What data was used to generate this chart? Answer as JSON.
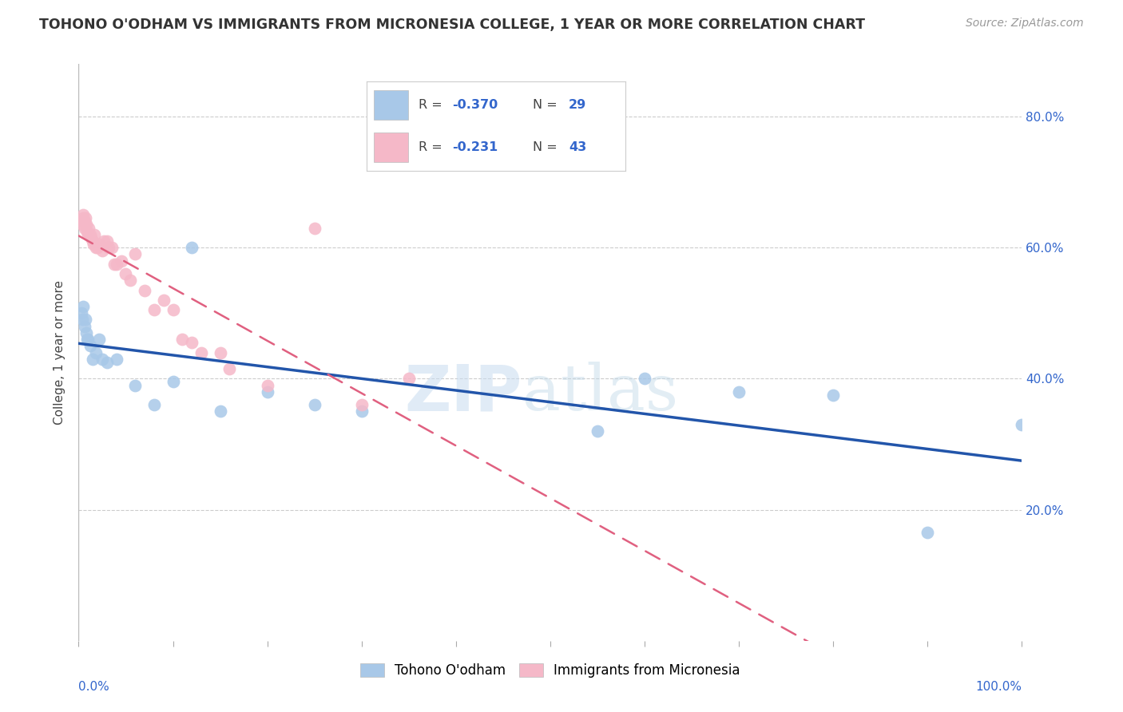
{
  "title": "TOHONO O'ODHAM VS IMMIGRANTS FROM MICRONESIA COLLEGE, 1 YEAR OR MORE CORRELATION CHART",
  "source": "Source: ZipAtlas.com",
  "ylabel": "College, 1 year or more",
  "legend_label_blue": "Tohono O'odham",
  "legend_label_pink": "Immigrants from Micronesia",
  "watermark_zip": "ZIP",
  "watermark_atlas": "atlas",
  "blue_color": "#a8c8e8",
  "pink_color": "#f5b8c8",
  "blue_line_color": "#2255aa",
  "pink_line_color": "#e06080",
  "background_color": "#ffffff",
  "grid_color": "#cccccc",
  "blue_x": [
    0.003,
    0.004,
    0.005,
    0.006,
    0.007,
    0.008,
    0.009,
    0.01,
    0.012,
    0.015,
    0.018,
    0.022,
    0.025,
    0.03,
    0.04,
    0.06,
    0.08,
    0.1,
    0.12,
    0.15,
    0.2,
    0.25,
    0.3,
    0.55,
    0.6,
    0.7,
    0.8,
    0.9,
    1.0
  ],
  "blue_y": [
    0.5,
    0.49,
    0.51,
    0.48,
    0.49,
    0.47,
    0.46,
    0.46,
    0.45,
    0.43,
    0.44,
    0.46,
    0.43,
    0.425,
    0.43,
    0.39,
    0.36,
    0.395,
    0.6,
    0.35,
    0.38,
    0.36,
    0.35,
    0.32,
    0.4,
    0.38,
    0.375,
    0.165,
    0.33
  ],
  "pink_x": [
    0.003,
    0.004,
    0.005,
    0.005,
    0.006,
    0.006,
    0.007,
    0.008,
    0.009,
    0.01,
    0.011,
    0.012,
    0.013,
    0.015,
    0.016,
    0.017,
    0.018,
    0.02,
    0.022,
    0.025,
    0.027,
    0.03,
    0.032,
    0.035,
    0.038,
    0.04,
    0.045,
    0.05,
    0.055,
    0.06,
    0.07,
    0.08,
    0.09,
    0.1,
    0.11,
    0.12,
    0.13,
    0.15,
    0.16,
    0.2,
    0.25,
    0.3,
    0.35
  ],
  "pink_y": [
    0.64,
    0.635,
    0.645,
    0.65,
    0.64,
    0.63,
    0.645,
    0.635,
    0.625,
    0.62,
    0.63,
    0.62,
    0.615,
    0.61,
    0.605,
    0.62,
    0.6,
    0.6,
    0.605,
    0.595,
    0.61,
    0.61,
    0.6,
    0.6,
    0.575,
    0.575,
    0.58,
    0.56,
    0.55,
    0.59,
    0.535,
    0.505,
    0.52,
    0.505,
    0.46,
    0.455,
    0.44,
    0.44,
    0.415,
    0.39,
    0.63,
    0.36,
    0.4
  ],
  "xmin": 0.0,
  "xmax": 1.0,
  "ymin": 0.0,
  "ymax": 0.88
}
